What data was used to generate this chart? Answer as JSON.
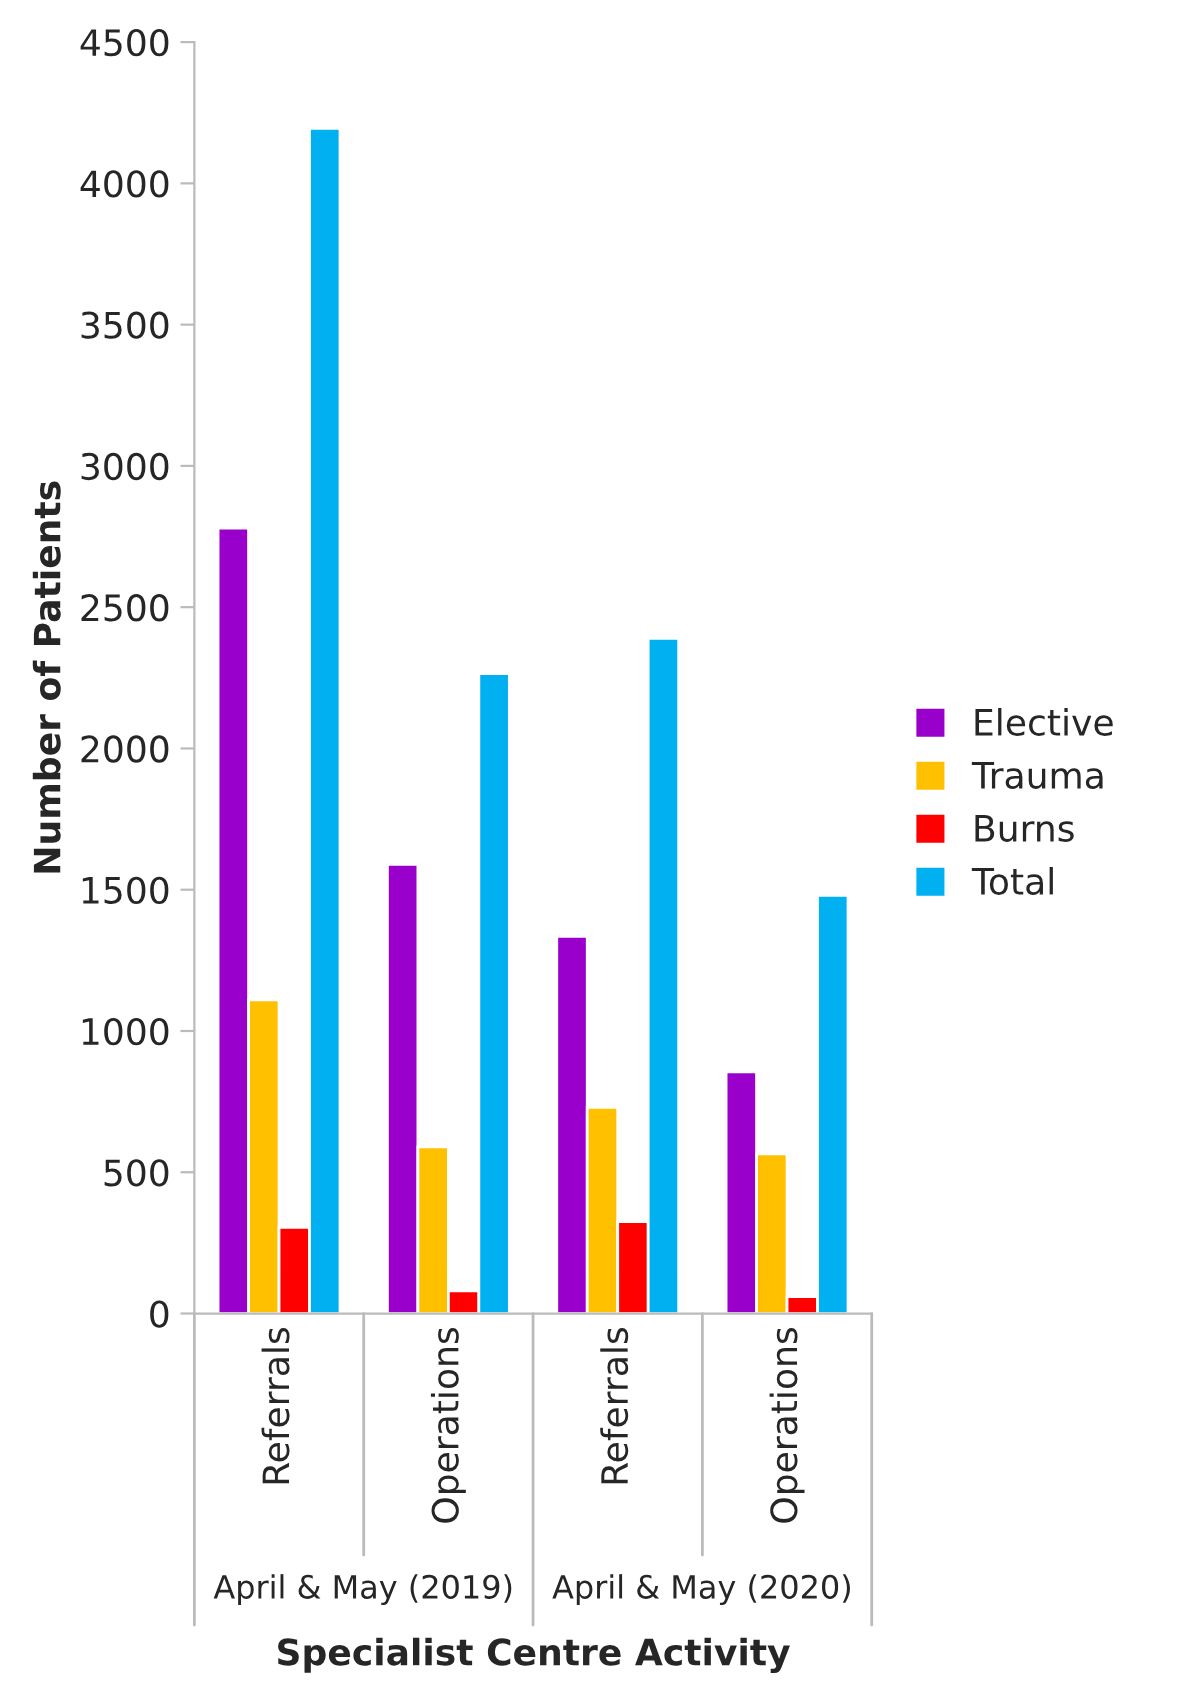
{
  "chart_data": {
    "type": "bar",
    "xlabel": "Specialist Centre Activity",
    "ylabel": "Number of Patients",
    "categories": [
      "Referrals",
      "Operations",
      "Referrals",
      "Operations"
    ],
    "annotations": [
      "April & May (2019)",
      "April & May (2020)"
    ],
    "series": [
      {
        "name": "Elective",
        "color": "#9900cc",
        "values": [
          2780,
          1590,
          1335,
          855
        ]
      },
      {
        "name": "Trauma",
        "color": "#ffc000",
        "values": [
          1110,
          590,
          730,
          565
        ]
      },
      {
        "name": "Burns",
        "color": "#ff0000",
        "values": [
          305,
          80,
          325,
          60
        ]
      },
      {
        "name": "Total",
        "color": "#00b0f0",
        "values": [
          4195,
          2265,
          2390,
          1480
        ]
      }
    ],
    "ylim": [
      0,
      4500
    ],
    "yticks": [
      0,
      500,
      1000,
      1500,
      2000,
      2500,
      3000,
      3500,
      4000,
      4500
    ],
    "grid": false,
    "legend": "right"
  }
}
